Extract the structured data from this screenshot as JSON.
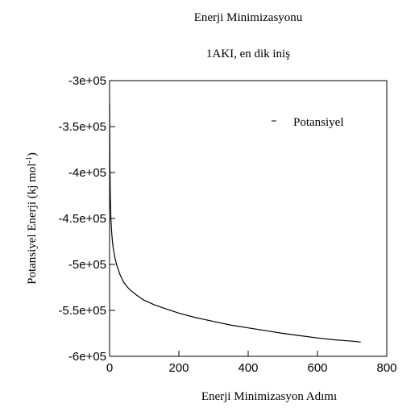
{
  "chart_data": {
    "type": "line",
    "title": "Enerji Minimizasyonu",
    "subtitle": "1AKI, en dik iniş",
    "xlabel": "Enerji Minimizasyon Adımı",
    "ylabel_main": "Potansiyel Enerji (kj mol",
    "ylabel_sup": "-1",
    "ylabel_close": ")",
    "xlim": [
      0,
      800
    ],
    "ylim": [
      -600000,
      -300000
    ],
    "x_ticks": [
      "0",
      "200",
      "400",
      "600",
      "800"
    ],
    "x_tick_values": [
      0,
      200,
      400,
      600,
      800
    ],
    "y_ticks": [
      "-3e+05",
      "-3.5e+05",
      "-4e+05",
      "-4.5e+05",
      "-5e+05",
      "-5.5e+05",
      "-6e+05"
    ],
    "y_tick_values": [
      -300000,
      -350000,
      -400000,
      -450000,
      -500000,
      -550000,
      -600000
    ],
    "legend_position": "top-right",
    "grid": false,
    "series": [
      {
        "name": "Potansiyel",
        "color": "#000000",
        "x": [
          0,
          1,
          2,
          3,
          4,
          6,
          8,
          10,
          15,
          20,
          30,
          40,
          50,
          60,
          80,
          100,
          130,
          160,
          200,
          250,
          300,
          350,
          400,
          450,
          500,
          550,
          600,
          650,
          700,
          725
        ],
        "y": [
          -325000,
          -395000,
          -425000,
          -440000,
          -452000,
          -465000,
          -474000,
          -481000,
          -492000,
          -500000,
          -511000,
          -519000,
          -524000,
          -528000,
          -534000,
          -539000,
          -544000,
          -548000,
          -553000,
          -558000,
          -562000,
          -566000,
          -569000,
          -572000,
          -575000,
          -577500,
          -580000,
          -582000,
          -583500,
          -584500
        ]
      }
    ]
  }
}
